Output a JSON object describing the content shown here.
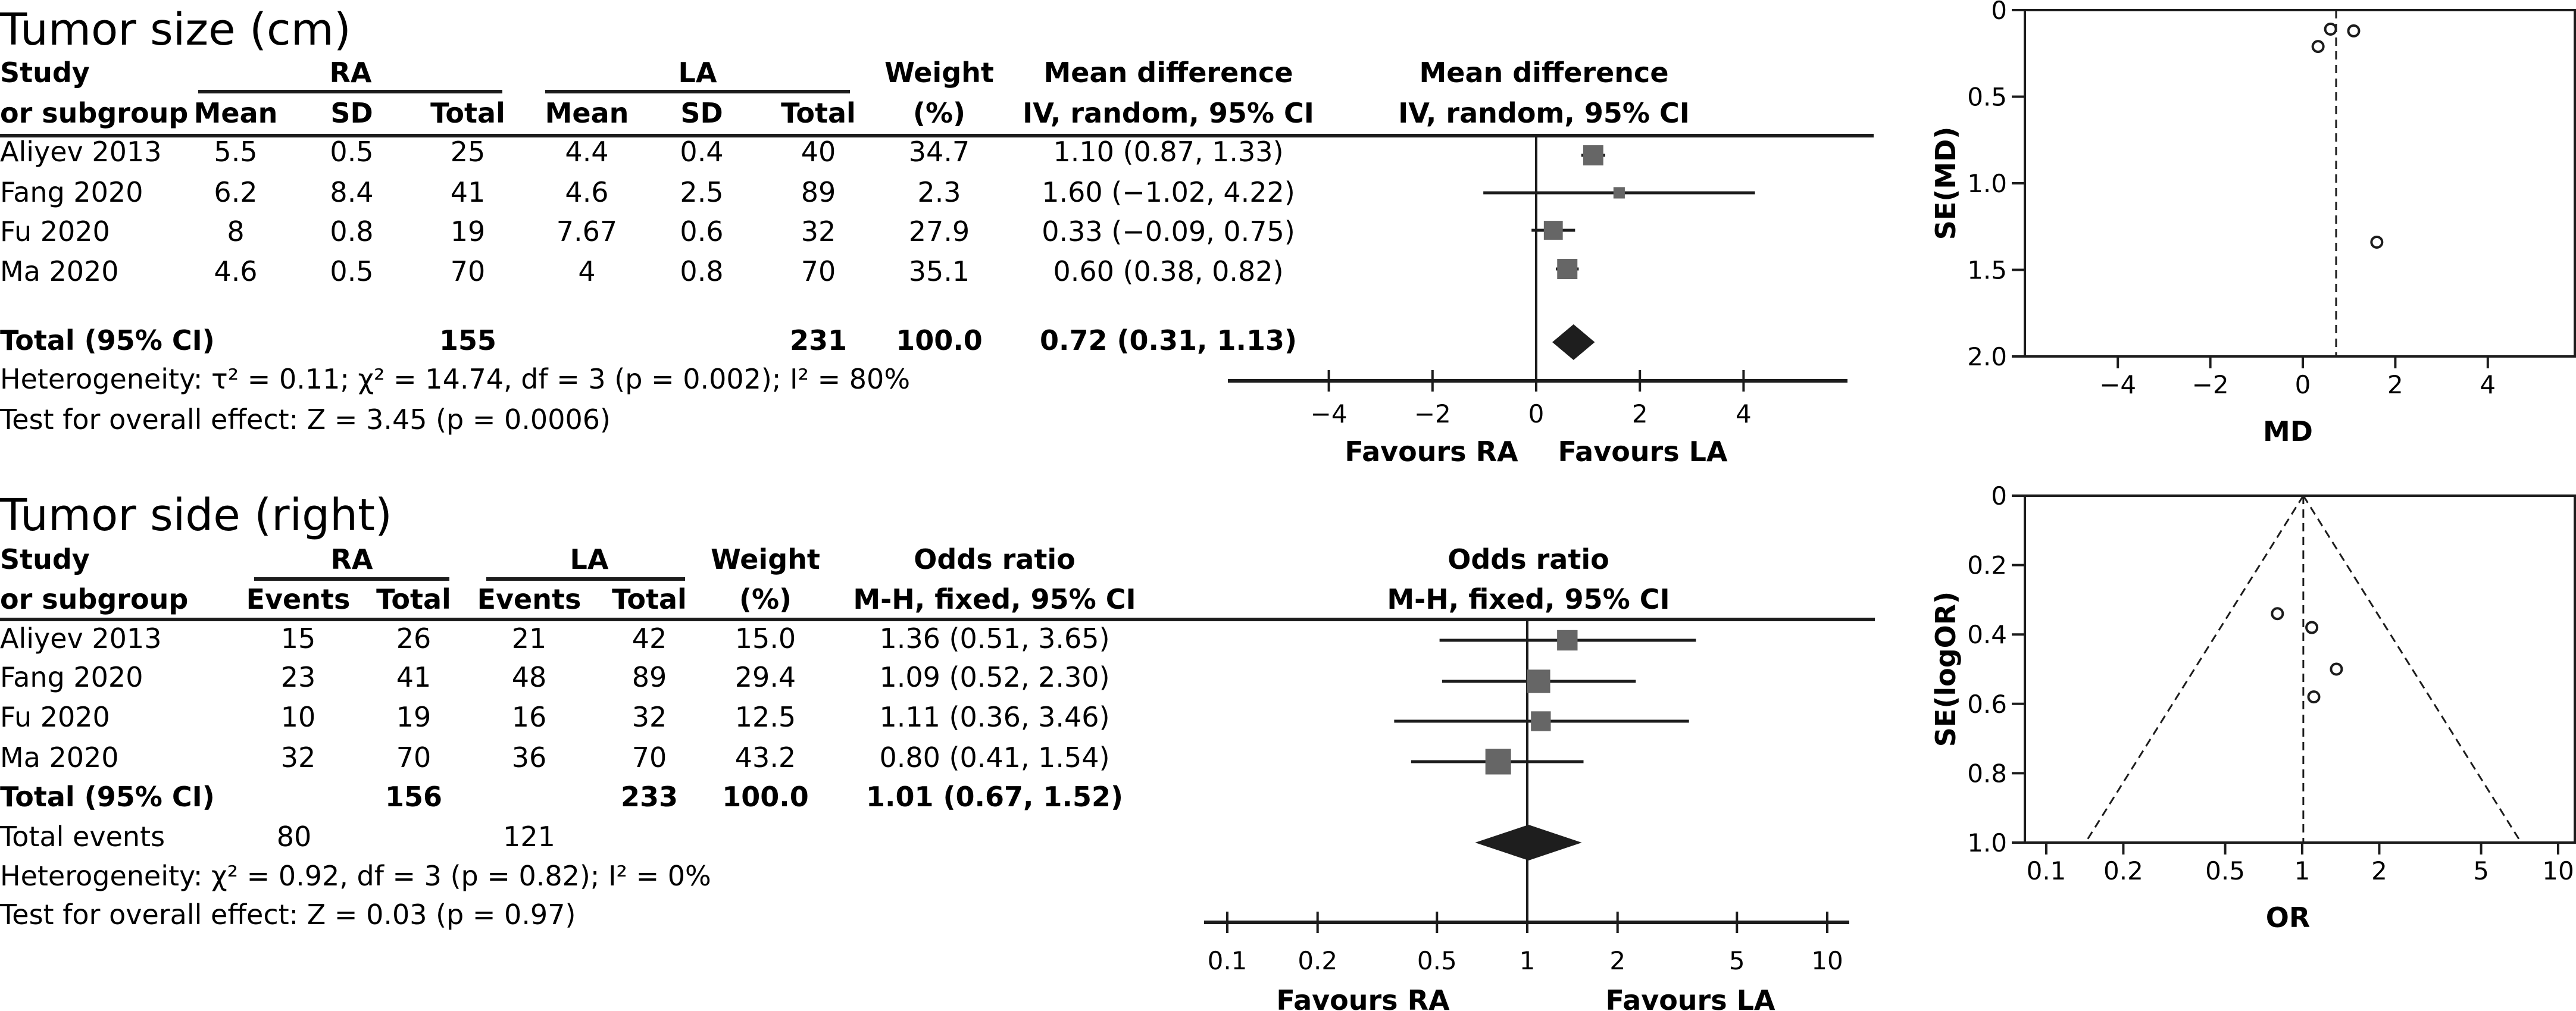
{
  "colors": {
    "marker": "#666666",
    "diamond": "#1e1e1e",
    "ink": "#1c1c1c"
  },
  "forest_md": {
    "title": "Tumor size (cm)",
    "headers": {
      "study1": "Study",
      "study2": "or subgroup",
      "groupA": "RA",
      "groupB": "LA",
      "mean": "Mean",
      "sd": "SD",
      "total": "Total",
      "weight1": "Weight",
      "weight2": "(%)",
      "effect1": "Mean difference",
      "effect2": "IV, random, 95% CI",
      "plot1": "Mean difference",
      "plot2": "IV, random, 95% CI"
    },
    "rows": [
      {
        "study": "Aliyev 2013",
        "ra_mean": "5.5",
        "ra_sd": "0.5",
        "ra_total": "25",
        "la_mean": "4.4",
        "la_sd": "0.4",
        "la_total": "40",
        "weight": "34.7",
        "effect": "1.10 (0.87, 1.33)"
      },
      {
        "study": "Fang 2020",
        "ra_mean": "6.2",
        "ra_sd": "8.4",
        "ra_total": "41",
        "la_mean": "4.6",
        "la_sd": "2.5",
        "la_total": "89",
        "weight": "2.3",
        "effect": "1.60 (−1.02, 4.22)"
      },
      {
        "study": "Fu 2020",
        "ra_mean": "8",
        "ra_sd": "0.8",
        "ra_total": "19",
        "la_mean": "7.67",
        "la_sd": "0.6",
        "la_total": "32",
        "weight": "27.9",
        "effect": "0.33 (−0.09, 0.75)"
      },
      {
        "study": "Ma 2020",
        "ra_mean": "4.6",
        "ra_sd": "0.5",
        "ra_total": "70",
        "la_mean": "4",
        "la_sd": "0.8",
        "la_total": "70",
        "weight": "35.1",
        "effect": "0.60 (0.38, 0.82)"
      }
    ],
    "total": {
      "label": "Total (95% CI)",
      "ra_total": "155",
      "la_total": "231",
      "weight": "100.0",
      "effect": "0.72 (0.31, 1.13)"
    },
    "heterogeneity": "Heterogeneity: τ² = 0.11; χ² = 14.74, df = 3 (p = 0.002); I² = 80%",
    "overall": "Test for overall effect: Z = 3.45 (p = 0.0006)",
    "favours_left": "Favours RA",
    "favours_right": "Favours LA"
  },
  "forest_or": {
    "title": "Tumor side (right)",
    "headers": {
      "study1": "Study",
      "study2": "or subgroup",
      "groupA": "RA",
      "groupB": "LA",
      "events": "Events",
      "total": "Total",
      "weight1": "Weight",
      "weight2": "(%)",
      "effect1": "Odds ratio",
      "effect2": "M-H, fixed, 95% CI",
      "plot1": "Odds ratio",
      "plot2": "M-H, fixed, 95% CI"
    },
    "rows": [
      {
        "study": "Aliyev 2013",
        "ra_events": "15",
        "ra_total": "26",
        "la_events": "21",
        "la_total": "42",
        "weight": "15.0",
        "effect": "1.36 (0.51, 3.65)"
      },
      {
        "study": "Fang 2020",
        "ra_events": "23",
        "ra_total": "41",
        "la_events": "48",
        "la_total": "89",
        "weight": "29.4",
        "effect": "1.09 (0.52, 2.30)"
      },
      {
        "study": "Fu 2020",
        "ra_events": "10",
        "ra_total": "19",
        "la_events": "16",
        "la_total": "32",
        "weight": "12.5",
        "effect": "1.11 (0.36, 3.46)"
      },
      {
        "study": "Ma 2020",
        "ra_events": "32",
        "ra_total": "70",
        "la_events": "36",
        "la_total": "70",
        "weight": "43.2",
        "effect": "0.80 (0.41, 1.54)"
      }
    ],
    "total": {
      "label": "Total (95% CI)",
      "ra_total": "156",
      "la_total": "233",
      "weight": "100.0",
      "effect": "1.01 (0.67, 1.52)"
    },
    "total_events": {
      "label": "Total events",
      "ra": "80",
      "la": "121"
    },
    "heterogeneity": "Heterogeneity: χ² = 0.92, df = 3 (p = 0.82); I² = 0%",
    "overall": "Test for overall effect: Z = 0.03 (p = 0.97)",
    "favours_left": "Favours RA",
    "favours_right": "Favours LA"
  },
  "chart_data": [
    {
      "type": "scatter",
      "name": "forest-plot-mean-difference",
      "title": "Mean difference IV, random, 95% CI",
      "xlabel": "",
      "xlim": [
        -5.5,
        5.5
      ],
      "xticks": [
        -4,
        -2,
        0,
        2,
        4
      ],
      "xtick_labels": [
        "−4",
        "−2",
        "0",
        "2",
        "4"
      ],
      "studies": [
        {
          "name": "Aliyev 2013",
          "est": 1.1,
          "lo": 0.87,
          "hi": 1.33,
          "weight": 34.7
        },
        {
          "name": "Fang 2020",
          "est": 1.6,
          "lo": -1.02,
          "hi": 4.22,
          "weight": 2.3
        },
        {
          "name": "Fu 2020",
          "est": 0.33,
          "lo": -0.09,
          "hi": 0.75,
          "weight": 27.9
        },
        {
          "name": "Ma 2020",
          "est": 0.6,
          "lo": 0.38,
          "hi": 0.82,
          "weight": 35.1
        }
      ],
      "pooled": {
        "est": 0.72,
        "lo": 0.31,
        "hi": 1.13
      },
      "null_value": 0,
      "scale": "linear"
    },
    {
      "type": "scatter",
      "name": "funnel-plot-md",
      "xlabel": "MD",
      "ylabel": "SE(MD)",
      "xlim": [
        -6,
        6
      ],
      "ylim": [
        0,
        2.0
      ],
      "xticks": [
        -4,
        -2,
        0,
        2,
        4
      ],
      "xtick_labels": [
        "−4",
        "−2",
        "0",
        "2",
        "4"
      ],
      "yticks": [
        0,
        0.5,
        1.0,
        1.5,
        2.0
      ],
      "ytick_labels": [
        "0",
        "0.5",
        "1.0",
        "1.5",
        "2.0"
      ],
      "points": [
        {
          "x": 0.6,
          "y": 0.11
        },
        {
          "x": 1.1,
          "y": 0.12
        },
        {
          "x": 0.33,
          "y": 0.21
        },
        {
          "x": 1.6,
          "y": 1.34
        }
      ],
      "reference_line_x": 0.72
    },
    {
      "type": "scatter",
      "name": "forest-plot-odds-ratio",
      "title": "Odds ratio M-H, fixed, 95% CI",
      "xlim": [
        0.08,
        12
      ],
      "xticks": [
        0.1,
        0.2,
        0.5,
        1,
        2,
        5,
        10
      ],
      "xtick_labels": [
        "0.1",
        "0.2",
        "0.5",
        "1",
        "2",
        "5",
        "10"
      ],
      "studies": [
        {
          "name": "Aliyev 2013",
          "est": 1.36,
          "lo": 0.51,
          "hi": 3.65,
          "weight": 15.0
        },
        {
          "name": "Fang 2020",
          "est": 1.09,
          "lo": 0.52,
          "hi": 2.3,
          "weight": 29.4
        },
        {
          "name": "Fu 2020",
          "est": 1.11,
          "lo": 0.36,
          "hi": 3.46,
          "weight": 12.5
        },
        {
          "name": "Ma 2020",
          "est": 0.8,
          "lo": 0.41,
          "hi": 1.54,
          "weight": 43.2
        }
      ],
      "pooled": {
        "est": 1.01,
        "lo": 0.67,
        "hi": 1.52
      },
      "null_value": 1,
      "scale": "log"
    },
    {
      "type": "scatter",
      "name": "funnel-plot-or",
      "xlabel": "OR",
      "ylabel": "SE(logOR)",
      "xlim": [
        0.08,
        12
      ],
      "ylim": [
        0,
        1.0
      ],
      "xscale": "log",
      "xticks": [
        0.1,
        0.2,
        0.5,
        1,
        2,
        5,
        10
      ],
      "xtick_labels": [
        "0.1",
        "0.2",
        "0.5",
        "1",
        "2",
        "5",
        "10"
      ],
      "yticks": [
        0,
        0.2,
        0.4,
        0.6,
        0.8,
        1.0
      ],
      "ytick_labels": [
        "0",
        "0.2",
        "0.4",
        "0.6",
        "0.8",
        "1.0"
      ],
      "points": [
        {
          "x": 0.8,
          "y": 0.34
        },
        {
          "x": 1.09,
          "y": 0.38
        },
        {
          "x": 1.36,
          "y": 0.5
        },
        {
          "x": 1.11,
          "y": 0.58
        }
      ],
      "reference_line_x": 1.01,
      "funnel_limits": "95% pseudo-CI"
    }
  ]
}
